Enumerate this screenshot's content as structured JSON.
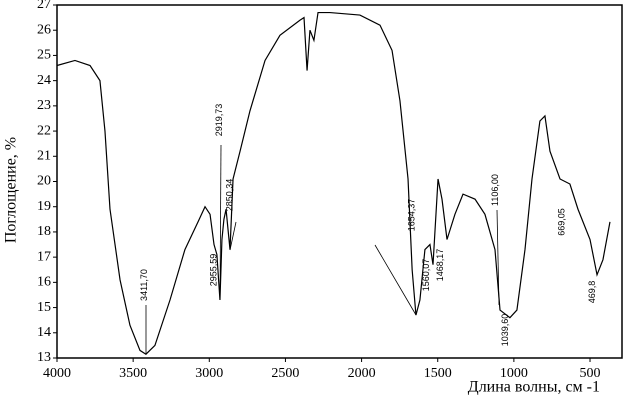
{
  "chart_data": {
    "type": "line",
    "xlabel": "Длина волны, см -1",
    "ylabel": "Поглощение, %",
    "xlim": [
      4000,
      290
    ],
    "ylim": [
      13,
      27
    ],
    "xticks": [
      4000,
      3500,
      3000,
      2500,
      2000,
      1500,
      1000,
      500
    ],
    "yticks": [
      13,
      14,
      15,
      16,
      17,
      18,
      19,
      20,
      21,
      22,
      23,
      24,
      25,
      26,
      27
    ],
    "x": [
      4000,
      3882,
      3783,
      3718,
      3685,
      3652,
      3586,
      3521,
      3455,
      3416,
      3357,
      3258,
      3160,
      3074,
      3028,
      2995,
      2969,
      2950,
      2930,
      2917,
      2904,
      2890,
      2877,
      2864,
      2844,
      2798,
      2733,
      2634,
      2536,
      2404,
      2378,
      2358,
      2339,
      2313,
      2286,
      2208,
      2011,
      1879,
      1800,
      1748,
      1695,
      1668,
      1643,
      1617,
      1584,
      1551,
      1531,
      1498,
      1472,
      1439,
      1387,
      1334,
      1255,
      1190,
      1124,
      1091,
      1026,
      980,
      927,
      881,
      829,
      796,
      763,
      697,
      632,
      579,
      500,
      454,
      415,
      369
    ],
    "series": [
      {
        "color": "#000000",
        "values": [
          24.6,
          24.8,
          24.6,
          24.0,
          22.0,
          18.9,
          16.1,
          14.3,
          13.3,
          13.15,
          13.5,
          15.3,
          17.3,
          18.4,
          19.0,
          18.7,
          17.5,
          17.1,
          15.3,
          17.7,
          18.5,
          18.9,
          18.1,
          17.3,
          20.1,
          21.2,
          22.8,
          24.8,
          25.8,
          26.4,
          26.5,
          24.4,
          26.0,
          25.6,
          26.7,
          26.7,
          26.6,
          26.2,
          25.2,
          23.2,
          20.1,
          16.5,
          14.7,
          15.3,
          17.3,
          17.5,
          16.7,
          20.1,
          19.3,
          17.7,
          18.7,
          19.5,
          19.3,
          18.7,
          17.3,
          14.9,
          14.6,
          14.9,
          17.3,
          20.1,
          22.4,
          22.6,
          21.2,
          20.1,
          19.9,
          18.9,
          17.7,
          16.3,
          16.9,
          18.4
        ]
      }
    ],
    "annotations": [
      {
        "text": "3411,70",
        "x": 3411.7
      },
      {
        "text": "2955,59",
        "x": 2955.59
      },
      {
        "text": "2919,73",
        "x": 2919.73
      },
      {
        "text": "2850,34",
        "x": 2850.34
      },
      {
        "text": "1654,37",
        "x": 1654.37
      },
      {
        "text": "1560,07",
        "x": 1560.07
      },
      {
        "text": "1468,17",
        "x": 1468.17
      },
      {
        "text": "1106,00",
        "x": 1106.0
      },
      {
        "text": "1039,60",
        "x": 1039.6
      },
      {
        "text": "669,05",
        "x": 669.05
      },
      {
        "text": "469,8",
        "x": 469.8
      }
    ]
  }
}
